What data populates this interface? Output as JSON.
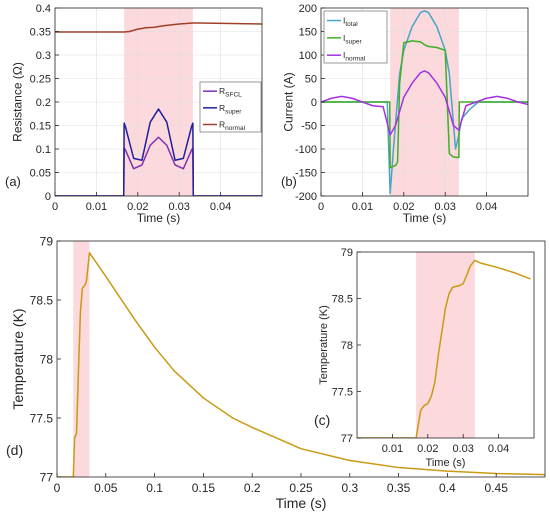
{
  "chart_data": [
    {
      "panel_label": "(a)",
      "type": "line",
      "xlabel": "Time (s)",
      "ylabel": "Resistance (Ω)",
      "xlim": [
        0,
        0.05
      ],
      "ylim": [
        0,
        0.4
      ],
      "xticks": [
        "0",
        "0.01",
        "0.02",
        "0.03",
        "0.04"
      ],
      "xtick_values": [
        0,
        0.01,
        0.02,
        0.03,
        0.04
      ],
      "yticks": [
        "0",
        "0.05",
        "0.1",
        "0.15",
        "0.2",
        "0.25",
        "0.3",
        "0.35",
        "0.4"
      ],
      "ytick_values": [
        0,
        0.05,
        0.1,
        0.15,
        0.2,
        0.25,
        0.3,
        0.35,
        0.4
      ],
      "shaded_region": [
        0.0167,
        0.0333
      ],
      "grid": true,
      "legend_position": "inside-right",
      "series": [
        {
          "name": "R",
          "subscript": "SFCL",
          "color": "#7e2fb0",
          "x": [
            0,
            0.0166,
            0.0167,
            0.017,
            0.019,
            0.021,
            0.023,
            0.025,
            0.027,
            0.029,
            0.031,
            0.033,
            0.0333,
            0.0334,
            0.05
          ],
          "y": [
            0,
            0,
            0.102,
            0.098,
            0.058,
            0.066,
            0.108,
            0.125,
            0.108,
            0.066,
            0.058,
            0.098,
            0.102,
            0,
            0
          ]
        },
        {
          "name": "R",
          "subscript": "super",
          "color": "#1f1f9e",
          "x": [
            0,
            0.0166,
            0.0167,
            0.017,
            0.019,
            0.021,
            0.023,
            0.025,
            0.027,
            0.029,
            0.031,
            0.033,
            0.0333,
            0.0334,
            0.05
          ],
          "y": [
            0,
            0,
            0.155,
            0.148,
            0.08,
            0.076,
            0.157,
            0.185,
            0.157,
            0.076,
            0.08,
            0.148,
            0.155,
            0,
            0
          ]
        },
        {
          "name": "R",
          "subscript": "normal",
          "color": "#a0402a",
          "x": [
            0,
            0.0167,
            0.018,
            0.02,
            0.022,
            0.024,
            0.026,
            0.028,
            0.03,
            0.0333,
            0.035,
            0.05
          ],
          "y": [
            0.349,
            0.349,
            0.35,
            0.355,
            0.358,
            0.359,
            0.362,
            0.364,
            0.366,
            0.368,
            0.368,
            0.366
          ]
        }
      ]
    },
    {
      "panel_label": "(b)",
      "type": "line",
      "xlabel": "Time (s)",
      "ylabel": "Current (A)",
      "xlim": [
        0,
        0.05
      ],
      "ylim": [
        -200,
        200
      ],
      "xticks": [
        "0",
        "0.01",
        "0.02",
        "0.03",
        "0.04"
      ],
      "xtick_values": [
        0,
        0.01,
        0.02,
        0.03,
        0.04
      ],
      "yticks": [
        "-200",
        "-150",
        "-100",
        "-50",
        "0",
        "50",
        "100",
        "150",
        "200"
      ],
      "ytick_values": [
        -200,
        -150,
        -100,
        -50,
        0,
        50,
        100,
        150,
        200
      ],
      "shaded_region": [
        0.0167,
        0.0333
      ],
      "grid": true,
      "legend_position": "top-left",
      "series": [
        {
          "name": "I",
          "subscript": "total",
          "color": "#4aa3c8",
          "x": [
            0,
            0.002,
            0.004,
            0.006,
            0.008,
            0.01,
            0.012,
            0.014,
            0.016,
            0.0167,
            0.0175,
            0.019,
            0.02,
            0.022,
            0.024,
            0.025,
            0.026,
            0.028,
            0.03,
            0.031,
            0.0325,
            0.0333,
            0.034,
            0.036,
            0.038,
            0.04,
            0.042,
            0.044,
            0.046,
            0.048,
            0.05
          ],
          "y": [
            0,
            0,
            0,
            0,
            0,
            0,
            0,
            0,
            0,
            -195,
            -100,
            60,
            110,
            160,
            190,
            194,
            190,
            160,
            110,
            60,
            -100,
            -70,
            -35,
            -15,
            0,
            0,
            0,
            0,
            0,
            0,
            0
          ]
        },
        {
          "name": "I",
          "subscript": "super",
          "color": "#3fae27",
          "x": [
            0,
            0.0166,
            0.0167,
            0.018,
            0.0185,
            0.019,
            0.02,
            0.022,
            0.024,
            0.025,
            0.026,
            0.028,
            0.03,
            0.031,
            0.032,
            0.0333,
            0.0334,
            0.05
          ],
          "y": [
            0,
            0,
            -140,
            -135,
            -128,
            40,
            126,
            130,
            128,
            122,
            118,
            116,
            110,
            -110,
            -117,
            -118,
            0,
            0
          ]
        },
        {
          "name": "I",
          "subscript": "normal",
          "color": "#a432e0",
          "x": [
            0,
            0.0025,
            0.005,
            0.0075,
            0.01,
            0.0125,
            0.015,
            0.0167,
            0.018,
            0.02,
            0.022,
            0.024,
            0.025,
            0.026,
            0.028,
            0.03,
            0.032,
            0.0333,
            0.035,
            0.0375,
            0.04,
            0.0425,
            0.045,
            0.0475,
            0.05
          ],
          "y": [
            0,
            8,
            12,
            8,
            0,
            -8,
            -10,
            -70,
            -50,
            10,
            40,
            62,
            66,
            62,
            40,
            10,
            -50,
            -60,
            -8,
            0,
            8,
            12,
            8,
            0,
            -5
          ]
        }
      ]
    },
    {
      "panel_label": "(d)",
      "type": "line",
      "xlabel": "Time (s)",
      "ylabel": "Temperature (K)",
      "xlim": [
        0,
        0.5
      ],
      "ylim": [
        77,
        79
      ],
      "xticks": [
        "0",
        "0.05",
        "0.1",
        "0.15",
        "0.2",
        "0.25",
        "0.3",
        "0.35",
        "0.4",
        "0.45"
      ],
      "xtick_values": [
        0,
        0.05,
        0.1,
        0.15,
        0.2,
        0.25,
        0.3,
        0.35,
        0.4,
        0.45
      ],
      "yticks": [
        "77",
        "77.5",
        "78",
        "78.5",
        "79"
      ],
      "ytick_values": [
        77,
        77.5,
        78,
        78.5,
        79
      ],
      "shaded_region": [
        0.0167,
        0.0333
      ],
      "grid": false,
      "series": [
        {
          "color": "#c99a12",
          "x": [
            0,
            0.0167,
            0.018,
            0.02,
            0.022,
            0.024,
            0.026,
            0.028,
            0.03,
            0.0333,
            0.05,
            0.08,
            0.1,
            0.12,
            0.15,
            0.18,
            0.2,
            0.25,
            0.3,
            0.35,
            0.4,
            0.45,
            0.5
          ],
          "y": [
            77,
            77,
            77.33,
            77.37,
            77.9,
            78.4,
            78.6,
            78.62,
            78.65,
            78.9,
            78.7,
            78.33,
            78.1,
            77.9,
            77.67,
            77.5,
            77.42,
            77.24,
            77.14,
            77.08,
            77.05,
            77.03,
            77.02
          ]
        }
      ]
    },
    {
      "panel_label": "(c)",
      "type": "line",
      "xlabel": "Time (s)",
      "ylabel": "Temperature (K)",
      "xlim": [
        0,
        0.05
      ],
      "ylim": [
        77,
        79
      ],
      "xticks": [
        "0.01",
        "0.02",
        "0.03",
        "0.04"
      ],
      "xtick_values": [
        0.01,
        0.02,
        0.03,
        0.04
      ],
      "yticks": [
        "77",
        "77.5",
        "78",
        "78.5",
        "79"
      ],
      "ytick_values": [
        77,
        77.5,
        78,
        78.5,
        79
      ],
      "shaded_region": [
        0.0167,
        0.0333
      ],
      "grid": false,
      "series": [
        {
          "color": "#c99a12",
          "x": [
            0,
            0.0167,
            0.018,
            0.019,
            0.02,
            0.021,
            0.022,
            0.023,
            0.024,
            0.025,
            0.026,
            0.027,
            0.028,
            0.029,
            0.03,
            0.031,
            0.032,
            0.0333,
            0.035,
            0.04,
            0.045,
            0.049
          ],
          "y": [
            77,
            77,
            77.3,
            77.35,
            77.37,
            77.45,
            77.6,
            77.9,
            78.15,
            78.4,
            78.55,
            78.62,
            78.63,
            78.64,
            78.66,
            78.75,
            78.85,
            78.91,
            78.88,
            78.83,
            78.77,
            78.71
          ]
        }
      ]
    }
  ],
  "colors": {
    "shade": "#fbd9dc",
    "axis": "#262626",
    "grid": "#dfdfdf"
  }
}
